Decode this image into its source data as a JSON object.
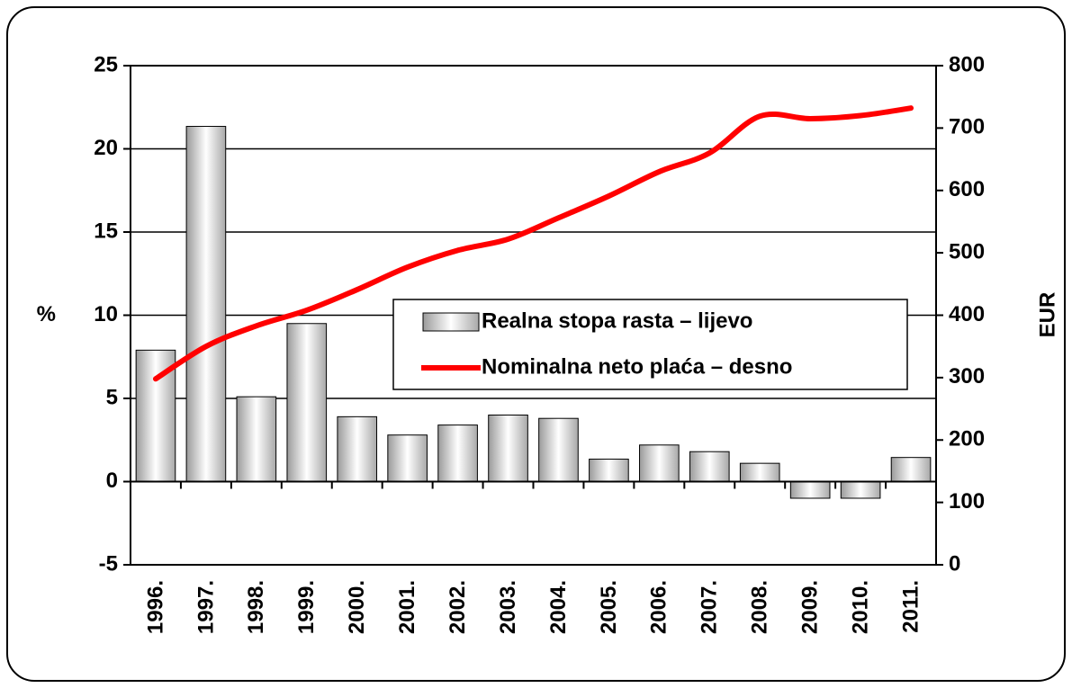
{
  "chart_data": {
    "type": "bar_line",
    "categories": [
      "1996.",
      "1997.",
      "1998.",
      "1999.",
      "2000.",
      "2001.",
      "2002.",
      "2003.",
      "2004.",
      "2005.",
      "2006.",
      "2007.",
      "2008.",
      "2009.",
      "2010.",
      "2011."
    ],
    "series": [
      {
        "name": "Realna stopa rasta – lijevo",
        "type": "bar",
        "color": "#d9d9d9",
        "values": [
          7.9,
          21.35,
          5.1,
          9.5,
          3.9,
          2.8,
          3.4,
          4.0,
          3.8,
          1.35,
          2.2,
          1.8,
          1.1,
          -1.0,
          -1.0,
          1.45
        ]
      },
      {
        "name": "Nominalna neto plaća – desno",
        "type": "line",
        "axis": "y2",
        "color": "#ff0000",
        "values": [
          298,
          350,
          383,
          408,
          441,
          477,
          504,
          522,
          556,
          591,
          630,
          660,
          719,
          715,
          720,
          732
        ]
      }
    ],
    "ylabel": "%",
    "y2label": "EUR",
    "ylim": [
      -5,
      25
    ],
    "yticks": [
      -5,
      0,
      5,
      10,
      15,
      20,
      25
    ],
    "y2lim": [
      0,
      800
    ],
    "y2ticks": [
      0,
      100,
      200,
      300,
      400,
      500,
      600,
      700,
      800
    ],
    "grid": true
  }
}
